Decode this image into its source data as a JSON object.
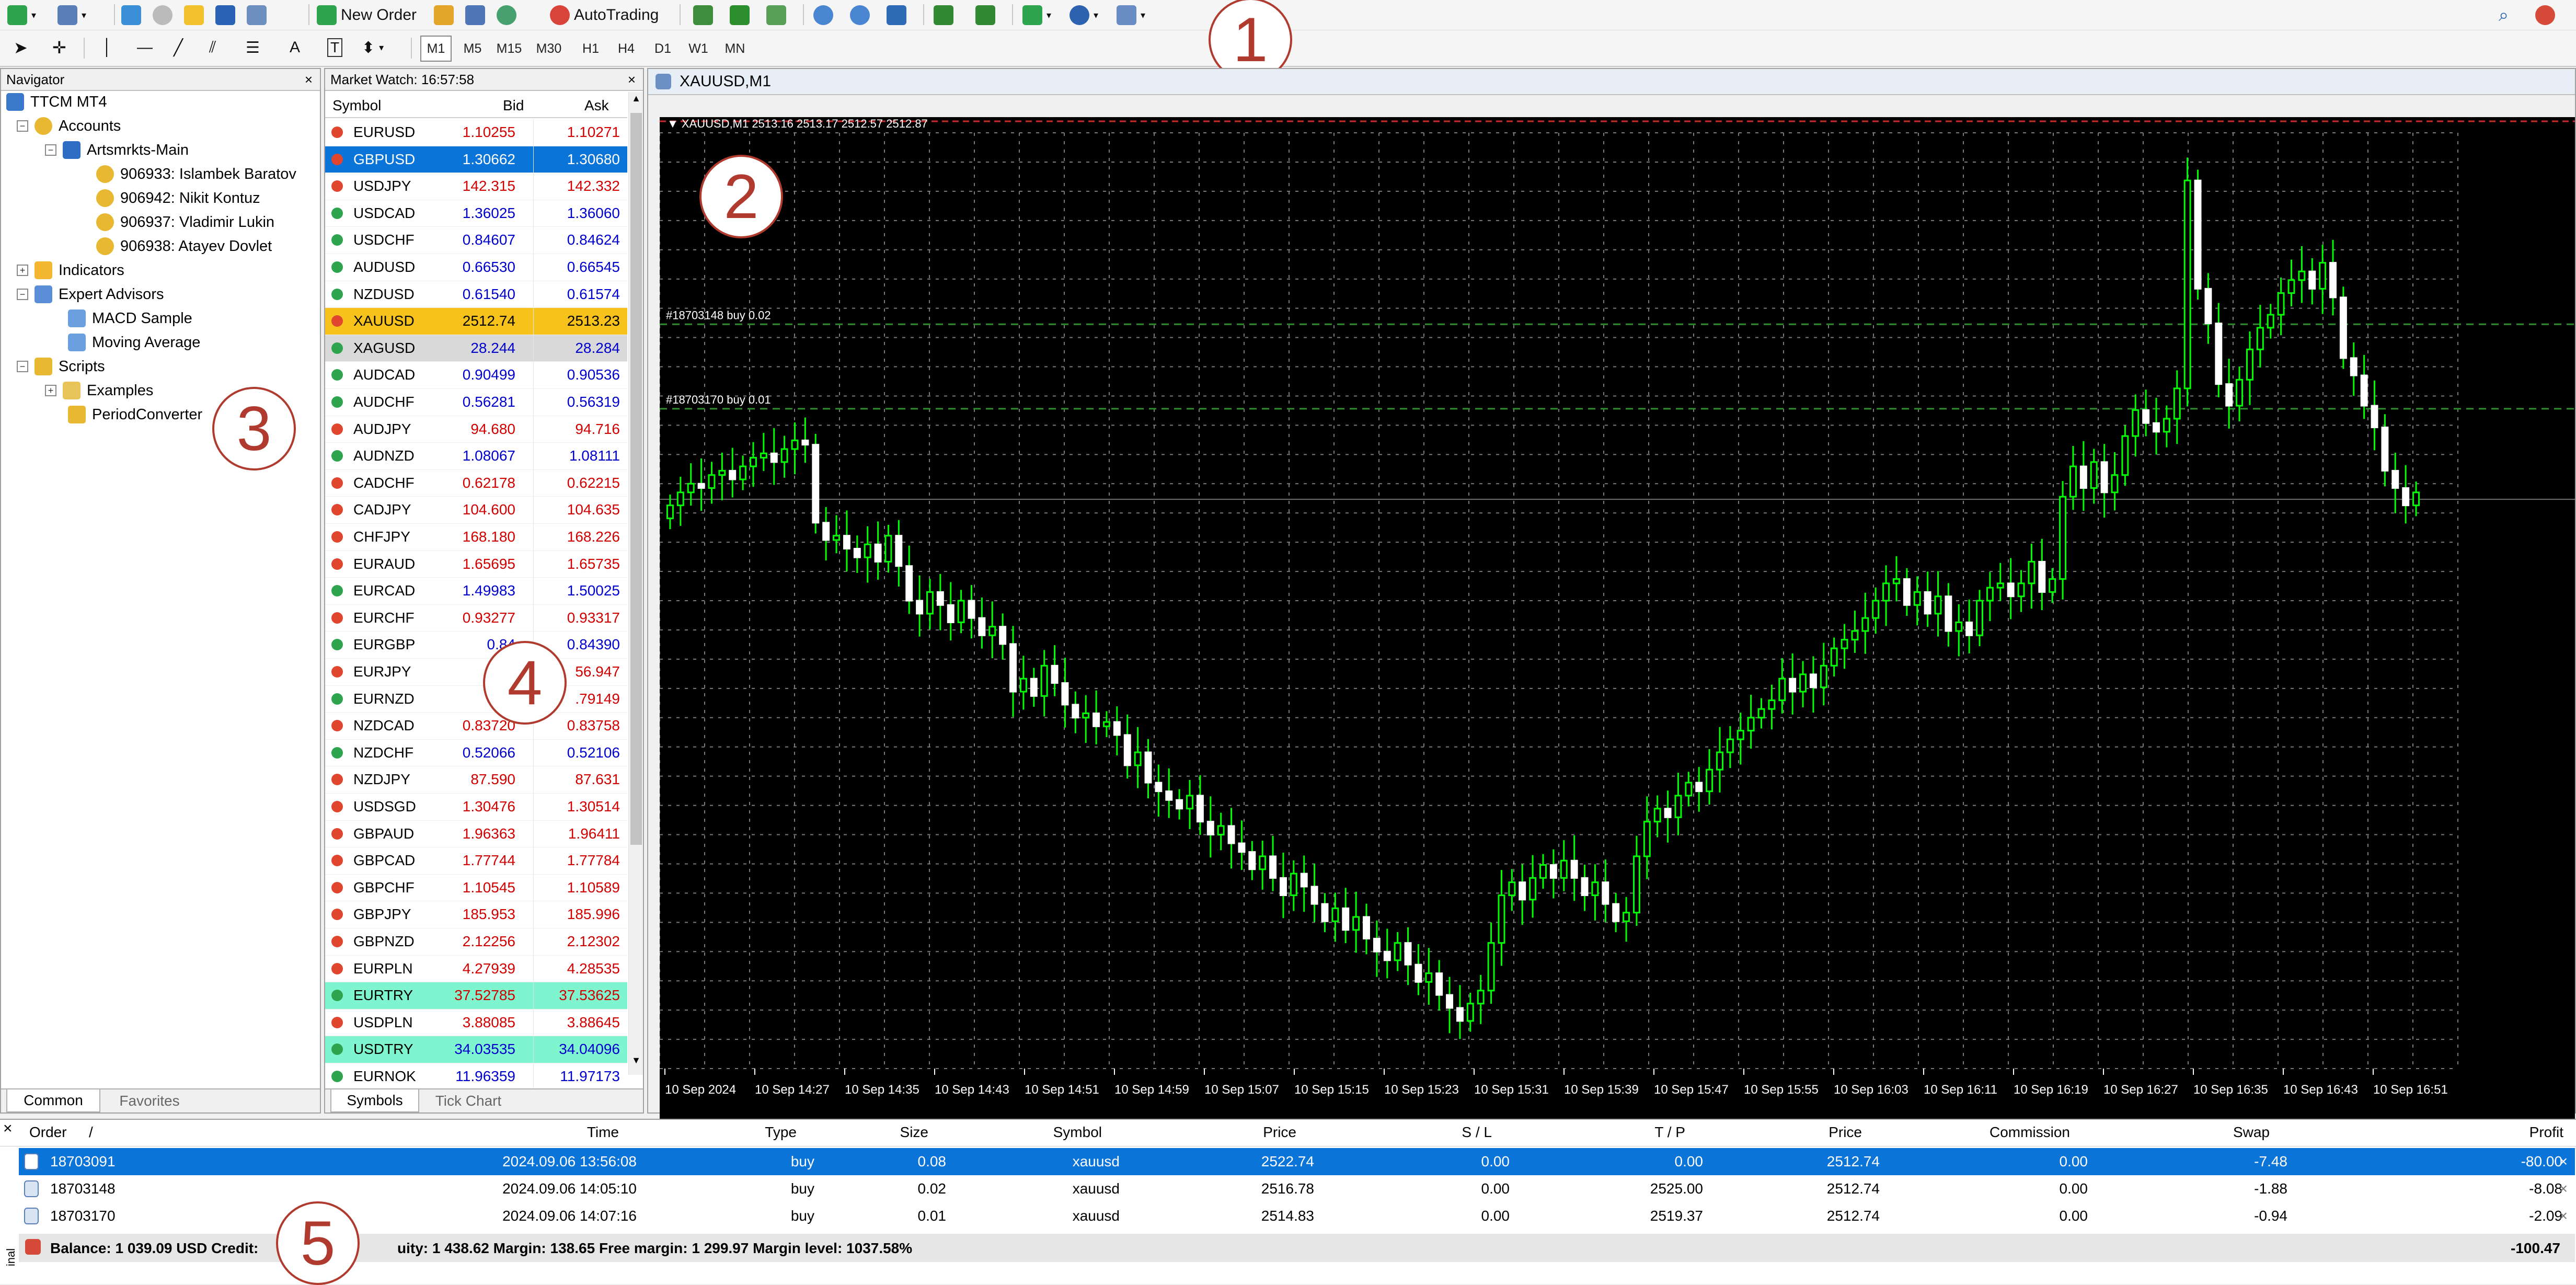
{
  "toolbar": {
    "new_order": "New Order",
    "auto_trading": "AutoTrading",
    "timeframes": [
      "M1",
      "M5",
      "M15",
      "M30",
      "H1",
      "H4",
      "D1",
      "W1",
      "MN"
    ]
  },
  "callouts": [
    "1",
    "2",
    "3",
    "4",
    "5"
  ],
  "navigator": {
    "title": "Navigator",
    "close": "×",
    "root": "TTCM MT4",
    "accounts": "Accounts",
    "server": "Artsmrkts-Main",
    "account_list": [
      "906933: Islambek Baratov",
      "906942: Nikit Kontuz",
      "906937: Vladimir Lukin",
      "906938: Atayev Dovlet"
    ],
    "indicators": "Indicators",
    "expert_advisors": "Expert Advisors",
    "experts": [
      "MACD Sample",
      "Moving Average"
    ],
    "scripts": "Scripts",
    "script_items": [
      "Examples",
      "PeriodConverter"
    ],
    "tabs": [
      "Common",
      "Favorites"
    ]
  },
  "market_watch": {
    "title": "Market Watch: 16:57:58",
    "close": "×",
    "col_symbol": "Symbol",
    "col_bid": "Bid",
    "col_ask": "Ask",
    "rows": [
      {
        "symbol": "EURUSD",
        "bid": "1.10255",
        "ask": "1.10271",
        "dir": "down",
        "bidc": "#d00000",
        "askc": "#d00000",
        "bg": ""
      },
      {
        "symbol": "GBPUSD",
        "bid": "1.30662",
        "ask": "1.30680",
        "dir": "down",
        "bidc": "#ffffff",
        "askc": "#ffffff",
        "bg": "#0a74d9"
      },
      {
        "symbol": "USDJPY",
        "bid": "142.315",
        "ask": "142.332",
        "dir": "down",
        "bidc": "#d00000",
        "askc": "#d00000",
        "bg": ""
      },
      {
        "symbol": "USDCAD",
        "bid": "1.36025",
        "ask": "1.36060",
        "dir": "up",
        "bidc": "#0000cc",
        "askc": "#0000cc",
        "bg": ""
      },
      {
        "symbol": "USDCHF",
        "bid": "0.84607",
        "ask": "0.84624",
        "dir": "up",
        "bidc": "#0000cc",
        "askc": "#0000cc",
        "bg": ""
      },
      {
        "symbol": "AUDUSD",
        "bid": "0.66530",
        "ask": "0.66545",
        "dir": "up",
        "bidc": "#0000cc",
        "askc": "#0000cc",
        "bg": ""
      },
      {
        "symbol": "NZDUSD",
        "bid": "0.61540",
        "ask": "0.61574",
        "dir": "up",
        "bidc": "#0000cc",
        "askc": "#0000cc",
        "bg": ""
      },
      {
        "symbol": "XAUUSD",
        "bid": "2512.74",
        "ask": "2513.23",
        "dir": "down",
        "bidc": "#000000",
        "askc": "#000000",
        "bg": "#f7c21c"
      },
      {
        "symbol": "XAGUSD",
        "bid": "28.244",
        "ask": "28.284",
        "dir": "up",
        "bidc": "#0000cc",
        "askc": "#0000cc",
        "bg": "#d9d9d9"
      },
      {
        "symbol": "AUDCAD",
        "bid": "0.90499",
        "ask": "0.90536",
        "dir": "up",
        "bidc": "#0000cc",
        "askc": "#0000cc",
        "bg": ""
      },
      {
        "symbol": "AUDCHF",
        "bid": "0.56281",
        "ask": "0.56319",
        "dir": "up",
        "bidc": "#0000cc",
        "askc": "#0000cc",
        "bg": ""
      },
      {
        "symbol": "AUDJPY",
        "bid": "94.680",
        "ask": "94.716",
        "dir": "down",
        "bidc": "#d00000",
        "askc": "#d00000",
        "bg": ""
      },
      {
        "symbol": "AUDNZD",
        "bid": "1.08067",
        "ask": "1.08111",
        "dir": "up",
        "bidc": "#0000cc",
        "askc": "#0000cc",
        "bg": ""
      },
      {
        "symbol": "CADCHF",
        "bid": "0.62178",
        "ask": "0.62215",
        "dir": "down",
        "bidc": "#d00000",
        "askc": "#d00000",
        "bg": ""
      },
      {
        "symbol": "CADJPY",
        "bid": "104.600",
        "ask": "104.635",
        "dir": "down",
        "bidc": "#d00000",
        "askc": "#d00000",
        "bg": ""
      },
      {
        "symbol": "CHFJPY",
        "bid": "168.180",
        "ask": "168.226",
        "dir": "down",
        "bidc": "#d00000",
        "askc": "#d00000",
        "bg": ""
      },
      {
        "symbol": "EURAUD",
        "bid": "1.65695",
        "ask": "1.65735",
        "dir": "down",
        "bidc": "#d00000",
        "askc": "#d00000",
        "bg": ""
      },
      {
        "symbol": "EURCAD",
        "bid": "1.49983",
        "ask": "1.50025",
        "dir": "up",
        "bidc": "#0000cc",
        "askc": "#0000cc",
        "bg": ""
      },
      {
        "symbol": "EURCHF",
        "bid": "0.93277",
        "ask": "0.93317",
        "dir": "down",
        "bidc": "#d00000",
        "askc": "#d00000",
        "bg": ""
      },
      {
        "symbol": "EURGBP",
        "bid": "0.84",
        "ask": "0.84390",
        "dir": "up",
        "bidc": "#0000cc",
        "askc": "#0000cc",
        "bg": ""
      },
      {
        "symbol": "EURJPY",
        "bid": "1",
        "ask": "56.947",
        "dir": "down",
        "bidc": "#d00000",
        "askc": "#d00000",
        "bg": ""
      },
      {
        "symbol": "EURNZD",
        "bid": "1.",
        "ask": ".79149",
        "dir": "up",
        "bidc": "#d00000",
        "askc": "#d00000",
        "bg": ""
      },
      {
        "symbol": "NZDCAD",
        "bid": "0.83720",
        "ask": "0.83758",
        "dir": "down",
        "bidc": "#d00000",
        "askc": "#d00000",
        "bg": ""
      },
      {
        "symbol": "NZDCHF",
        "bid": "0.52066",
        "ask": "0.52106",
        "dir": "up",
        "bidc": "#0000cc",
        "askc": "#0000cc",
        "bg": ""
      },
      {
        "symbol": "NZDJPY",
        "bid": "87.590",
        "ask": "87.631",
        "dir": "down",
        "bidc": "#d00000",
        "askc": "#d00000",
        "bg": ""
      },
      {
        "symbol": "USDSGD",
        "bid": "1.30476",
        "ask": "1.30514",
        "dir": "down",
        "bidc": "#d00000",
        "askc": "#d00000",
        "bg": ""
      },
      {
        "symbol": "GBPAUD",
        "bid": "1.96363",
        "ask": "1.96411",
        "dir": "down",
        "bidc": "#d00000",
        "askc": "#d00000",
        "bg": ""
      },
      {
        "symbol": "GBPCAD",
        "bid": "1.77744",
        "ask": "1.77784",
        "dir": "down",
        "bidc": "#d00000",
        "askc": "#d00000",
        "bg": ""
      },
      {
        "symbol": "GBPCHF",
        "bid": "1.10545",
        "ask": "1.10589",
        "dir": "down",
        "bidc": "#d00000",
        "askc": "#d00000",
        "bg": ""
      },
      {
        "symbol": "GBPJPY",
        "bid": "185.953",
        "ask": "185.996",
        "dir": "down",
        "bidc": "#d00000",
        "askc": "#d00000",
        "bg": ""
      },
      {
        "symbol": "GBPNZD",
        "bid": "2.12256",
        "ask": "2.12302",
        "dir": "down",
        "bidc": "#d00000",
        "askc": "#d00000",
        "bg": ""
      },
      {
        "symbol": "EURPLN",
        "bid": "4.27939",
        "ask": "4.28535",
        "dir": "down",
        "bidc": "#d00000",
        "askc": "#d00000",
        "bg": ""
      },
      {
        "symbol": "EURTRY",
        "bid": "37.52785",
        "ask": "37.53625",
        "dir": "up",
        "bidc": "#d00000",
        "askc": "#d00000",
        "bg": "#7ff5cf"
      },
      {
        "symbol": "USDPLN",
        "bid": "3.88085",
        "ask": "3.88645",
        "dir": "down",
        "bidc": "#d00000",
        "askc": "#d00000",
        "bg": ""
      },
      {
        "symbol": "USDTRY",
        "bid": "34.03535",
        "ask": "34.04096",
        "dir": "up",
        "bidc": "#0000cc",
        "askc": "#0000cc",
        "bg": "#7ff5cf"
      },
      {
        "symbol": "EURNOK",
        "bid": "11.96359",
        "ask": "11.97173",
        "dir": "up",
        "bidc": "#0000cc",
        "askc": "#0000cc",
        "bg": ""
      }
    ],
    "tabs": [
      "Symbols",
      "Tick Chart"
    ]
  },
  "chart": {
    "window_title": "XAUUSD,M1",
    "header": "XAUUSD,M1  2513.16 2513.17 2512.57 2512.87",
    "order_labels": [
      "#18703148 buy 0.02",
      "#18703170 buy 0.01"
    ],
    "x_labels": [
      "10 Sep 2024",
      "10 Sep 14:27",
      "10 Sep 14:35",
      "10 Sep 14:43",
      "10 Sep 14:51",
      "10 Sep 14:59",
      "10 Sep 15:07",
      "10 Sep 15:15",
      "10 Sep 15:23",
      "10 Sep 15:31",
      "10 Sep 15:39",
      "10 Sep 15:47",
      "10 Sep 15:55",
      "10 Sep 16:03",
      "10 Sep 16:11",
      "10 Sep 16:19",
      "10 Sep 16:27",
      "10 Sep 16:35",
      "10 Sep 16:43",
      "10 Sep 16:51"
    ],
    "closes": [
      2512.6,
      2512.9,
      2513.1,
      2513.0,
      2513.3,
      2513.4,
      2513.2,
      2513.5,
      2513.7,
      2513.8,
      2513.6,
      2513.9,
      2514.1,
      2514.0,
      2512.2,
      2511.8,
      2511.9,
      2511.6,
      2511.4,
      2511.7,
      2511.3,
      2511.9,
      2511.2,
      2510.4,
      2510.1,
      2510.6,
      2510.3,
      2509.9,
      2510.4,
      2510.0,
      2509.6,
      2509.8,
      2509.4,
      2508.3,
      2508.6,
      2508.2,
      2508.9,
      2508.5,
      2508.0,
      2507.7,
      2507.8,
      2507.5,
      2507.6,
      2507.3,
      2506.6,
      2506.9,
      2506.2,
      2506.0,
      2505.8,
      2505.6,
      2505.9,
      2505.3,
      2505.0,
      2505.2,
      2504.8,
      2504.6,
      2504.2,
      2504.5,
      2504.0,
      2503.6,
      2504.1,
      2503.8,
      2503.4,
      2503.0,
      2503.3,
      2502.8,
      2503.1,
      2502.6,
      2502.3,
      2502.1,
      2502.5,
      2502.0,
      2501.6,
      2501.8,
      2501.3,
      2501.0,
      2500.7,
      2501.1,
      2501.4,
      2502.5,
      2503.6,
      2503.9,
      2503.5,
      2504.0,
      2504.3,
      2504.0,
      2504.4,
      2504.0,
      2503.6,
      2503.9,
      2503.4,
      2503.0,
      2503.2,
      2504.5,
      2505.3,
      2505.6,
      2505.4,
      2505.9,
      2506.2,
      2506.0,
      2506.5,
      2506.9,
      2507.2,
      2507.4,
      2507.7,
      2507.9,
      2508.1,
      2508.6,
      2508.3,
      2508.7,
      2508.4,
      2508.9,
      2509.3,
      2509.5,
      2509.7,
      2510.0,
      2510.4,
      2510.8,
      2510.9,
      2510.3,
      2510.6,
      2510.1,
      2510.5,
      2509.7,
      2509.9,
      2509.6,
      2510.4,
      2510.7,
      2510.8,
      2510.5,
      2510.8,
      2511.3,
      2510.6,
      2510.9,
      2512.8,
      2513.5,
      2513.0,
      2513.6,
      2512.9,
      2513.3,
      2514.2,
      2514.8,
      2514.5,
      2514.3,
      2514.6,
      2515.3,
      2520.1,
      2517.6,
      2516.8,
      2515.4,
      2514.9,
      2515.5,
      2516.2,
      2516.7,
      2517.0,
      2517.5,
      2517.8,
      2518.0,
      2517.6,
      2518.2,
      2517.4,
      2516.0,
      2515.6,
      2514.9,
      2514.4,
      2513.4,
      2513.0,
      2512.6,
      2512.9
    ],
    "y_range": [
      2499.6,
      2521.2
    ],
    "candle_color": "#00ff00",
    "background": "#000000"
  },
  "terminal": {
    "headers": [
      "Order",
      "/",
      "Time",
      "Type",
      "Size",
      "Symbol",
      "Price",
      "S / L",
      "T / P",
      "Price",
      "Commission",
      "Swap",
      "Profit"
    ],
    "orders": [
      {
        "order": "18703091",
        "time": "2024.09.06 13:56:08",
        "type": "buy",
        "size": "0.08",
        "symbol": "xauusd",
        "price": "2522.74",
        "sl": "0.00",
        "tp": "0.00",
        "cur": "2512.74",
        "commission": "0.00",
        "swap": "-7.48",
        "profit": "-80.00",
        "selected": true
      },
      {
        "order": "18703148",
        "time": "2024.09.06 14:05:10",
        "type": "buy",
        "size": "0.02",
        "symbol": "xauusd",
        "price": "2516.78",
        "sl": "0.00",
        "tp": "2525.00",
        "cur": "2512.74",
        "commission": "0.00",
        "swap": "-1.88",
        "profit": "-8.08",
        "selected": false
      },
      {
        "order": "18703170",
        "time": "2024.09.06 14:07:16",
        "type": "buy",
        "size": "0.01",
        "symbol": "xauusd",
        "price": "2514.83",
        "sl": "0.00",
        "tp": "2519.37",
        "cur": "2512.74",
        "commission": "0.00",
        "swap": "-0.94",
        "profit": "-2.09",
        "selected": false
      }
    ],
    "row_close": "×",
    "balance_line": "Balance: 1 039.09 USD  Credit:",
    "equity_line": "uity: 1 438.62  Margin: 138.65  Free margin: 1 299.97  Margin level: 1037.58%",
    "total_profit": "-100.47",
    "side_label": "inal",
    "close": "×"
  },
  "colors": {
    "selection": "#0a74d9",
    "accent": "#b03a2e"
  }
}
